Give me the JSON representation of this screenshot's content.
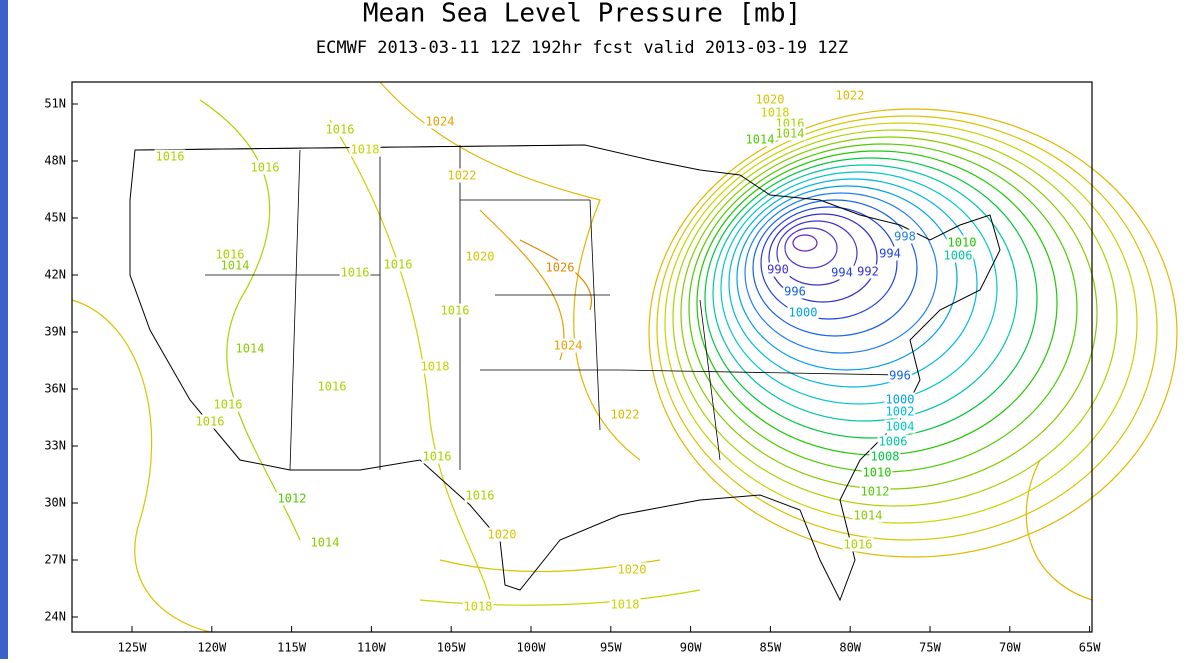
{
  "header": {
    "title": "Mean Sea Level Pressure [mb]",
    "subtitle": "ECMWF 2013-03-11 12Z 192hr fcst valid 2013-03-19 12Z"
  },
  "axes": {
    "lat_labels": [
      "51N",
      "48N",
      "45N",
      "42N",
      "39N",
      "36N",
      "33N",
      "30N",
      "27N",
      "24N"
    ],
    "lon_labels": [
      "125W",
      "120W",
      "115W",
      "110W",
      "105W",
      "100W",
      "95W",
      "90W",
      "85W",
      "80W",
      "75W",
      "70W",
      "65W"
    ]
  },
  "contour_labels": [
    {
      "label": "1016",
      "color": "#a8d400"
    },
    {
      "label": "1018",
      "color": "#c8d400"
    },
    {
      "label": "1024",
      "color": "#e8a000"
    },
    {
      "label": "1016",
      "color": "#a8d400"
    },
    {
      "label": "1016",
      "color": "#a8d400"
    },
    {
      "label": "1022",
      "color": "#e0b800"
    },
    {
      "label": "1016",
      "color": "#a8d400"
    },
    {
      "label": "1014",
      "color": "#88cc00"
    },
    {
      "label": "1016",
      "color": "#a8d400"
    },
    {
      "label": "1016",
      "color": "#a8d400"
    },
    {
      "label": "1020",
      "color": "#d8c400"
    },
    {
      "label": "1026",
      "color": "#e08800"
    },
    {
      "label": "1016",
      "color": "#a8d400"
    },
    {
      "label": "1024",
      "color": "#e8a000"
    },
    {
      "label": "1014",
      "color": "#88cc00"
    },
    {
      "label": "1018",
      "color": "#c8d400"
    },
    {
      "label": "1016",
      "color": "#a8d400"
    },
    {
      "label": "1016",
      "color": "#a8d400"
    },
    {
      "label": "1016",
      "color": "#a8d400"
    },
    {
      "label": "1022",
      "color": "#e0b800"
    },
    {
      "label": "1016",
      "color": "#a8d400"
    },
    {
      "label": "1016",
      "color": "#a8d400"
    },
    {
      "label": "1012",
      "color": "#50cc00"
    },
    {
      "label": "1014",
      "color": "#88cc00"
    },
    {
      "label": "1020",
      "color": "#d8c400"
    },
    {
      "label": "1020",
      "color": "#d8c400"
    },
    {
      "label": "1018",
      "color": "#c8d400"
    },
    {
      "label": "1018",
      "color": "#c8d400"
    },
    {
      "label": "1020",
      "color": "#d8c400"
    },
    {
      "label": "1022",
      "color": "#e0b800"
    },
    {
      "label": "1018",
      "color": "#c8d400"
    },
    {
      "label": "1016",
      "color": "#a8d400"
    },
    {
      "label": "1014",
      "color": "#88cc00"
    },
    {
      "label": "1014",
      "color": "#50cc00"
    },
    {
      "label": "990",
      "color": "#4030c8"
    },
    {
      "label": "994",
      "color": "#2040e0"
    },
    {
      "label": "992",
      "color": "#3030d0"
    },
    {
      "label": "998",
      "color": "#2080f0"
    },
    {
      "label": "994",
      "color": "#2040e0"
    },
    {
      "label": "1010",
      "color": "#20c800"
    },
    {
      "label": "1006",
      "color": "#00c8a0"
    },
    {
      "label": "996",
      "color": "#1060e8"
    },
    {
      "label": "1000",
      "color": "#00a0e8"
    },
    {
      "label": "996",
      "color": "#1060e8"
    },
    {
      "label": "1000",
      "color": "#00a0e8"
    },
    {
      "label": "1002",
      "color": "#00b8e0"
    },
    {
      "label": "1004",
      "color": "#00c8c8"
    },
    {
      "label": "1006",
      "color": "#00c8a0"
    },
    {
      "label": "1008",
      "color": "#00c840"
    },
    {
      "label": "1010",
      "color": "#20c800"
    },
    {
      "label": "1012",
      "color": "#50cc00"
    },
    {
      "label": "1014",
      "color": "#88cc00"
    },
    {
      "label": "1016",
      "color": "#a8d400"
    }
  ]
}
